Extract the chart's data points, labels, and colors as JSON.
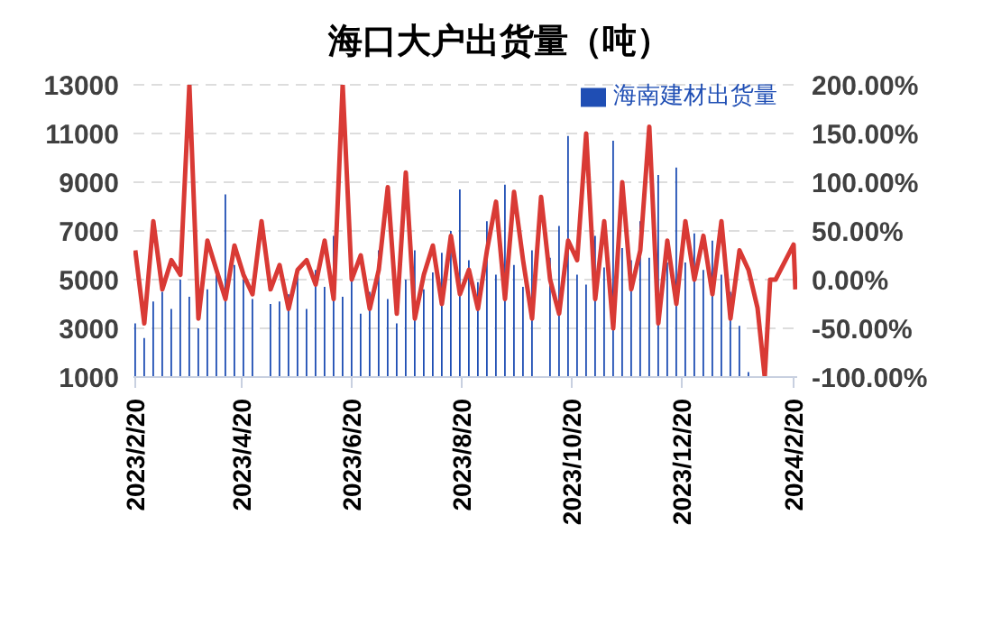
{
  "chart_data": {
    "type": "bar",
    "title": "海口大户出货量（吨）",
    "xlim": [
      "2023-02-19",
      "2024-02-22"
    ],
    "xticks": [
      {
        "value": "2023-02-20",
        "label": "2023/2/20"
      },
      {
        "value": "2023-04-20",
        "label": "2023/4/20"
      },
      {
        "value": "2023-06-20",
        "label": "2023/6/20"
      },
      {
        "value": "2023-08-20",
        "label": "2023/8/20"
      },
      {
        "value": "2023-10-20",
        "label": "2023/10/20"
      },
      {
        "value": "2023-12-20",
        "label": "2023/12/20"
      },
      {
        "value": "2024-02-20",
        "label": "2024/2/20"
      }
    ],
    "ylim": [
      1000,
      13000
    ],
    "yticks": [
      1000,
      3000,
      5000,
      7000,
      9000,
      11000,
      13000
    ],
    "y2lim": [
      -100,
      200
    ],
    "y2ticks": [
      {
        "value": -100,
        "label": "-100.00%"
      },
      {
        "value": -50,
        "label": "-50.00%"
      },
      {
        "value": 0,
        "label": "0.00%"
      },
      {
        "value": 50,
        "label": "50.00%"
      },
      {
        "value": 100,
        "label": "100.00%"
      },
      {
        "value": 150,
        "label": "150.00%"
      },
      {
        "value": 200,
        "label": "200.00%"
      }
    ],
    "grid": "y",
    "legend": "top right",
    "series": [
      {
        "name": "海南建材出货量",
        "color": "#1f4eb4",
        "x": [
          "2023-02-20",
          "2023-02-25",
          "2023-03-02",
          "2023-03-07",
          "2023-03-12",
          "2023-03-17",
          "2023-03-22",
          "2023-03-27",
          "2023-04-01",
          "2023-04-06",
          "2023-04-11",
          "2023-04-16",
          "2023-04-21",
          "2023-04-26",
          "2023-05-01",
          "2023-05-06",
          "2023-05-11",
          "2023-05-16",
          "2023-05-21",
          "2023-05-26",
          "2023-05-31",
          "2023-06-05",
          "2023-06-10",
          "2023-06-15",
          "2023-06-20",
          "2023-06-25",
          "2023-06-30",
          "2023-07-05",
          "2023-07-10",
          "2023-07-15",
          "2023-07-20",
          "2023-07-25",
          "2023-07-30",
          "2023-08-04",
          "2023-08-09",
          "2023-08-14",
          "2023-08-19",
          "2023-08-24",
          "2023-08-29",
          "2023-09-03",
          "2023-09-08",
          "2023-09-13",
          "2023-09-18",
          "2023-09-23",
          "2023-09-28",
          "2023-10-03",
          "2023-10-08",
          "2023-10-13",
          "2023-10-18",
          "2023-10-23",
          "2023-10-28",
          "2023-11-02",
          "2023-11-07",
          "2023-11-12",
          "2023-11-17",
          "2023-11-22",
          "2023-11-27",
          "2023-12-02",
          "2023-12-07",
          "2023-12-12",
          "2023-12-17",
          "2023-12-22",
          "2023-12-27",
          "2024-01-01",
          "2024-01-06",
          "2024-01-11",
          "2024-01-16",
          "2024-01-21",
          "2024-01-26"
        ],
        "values": [
          3200,
          2600,
          4100,
          4500,
          3800,
          5000,
          4300,
          3000,
          4600,
          5200,
          8500,
          5600,
          5000,
          4200,
          null,
          4000,
          4100,
          4400,
          5200,
          3800,
          5400,
          4700,
          6800,
          4300,
          5100,
          3600,
          4500,
          6200,
          4200,
          3200,
          5000,
          6200,
          4600,
          5300,
          6100,
          7000,
          8700,
          5800,
          4900,
          7400,
          5200,
          8900,
          5600,
          4700,
          6200,
          null,
          5900,
          7200,
          10900,
          5200,
          4800,
          6800,
          5500,
          10700,
          6300,
          5800,
          7400,
          5900,
          9300,
          5700,
          9600,
          5700,
          6900,
          5400,
          6600,
          5200,
          4500,
          3100,
          1200
        ]
      },
      {
        "type": "line",
        "axis": "y2",
        "color": "#d93a35",
        "x": [
          "2023-02-20",
          "2023-02-25",
          "2023-03-02",
          "2023-03-07",
          "2023-03-12",
          "2023-03-17",
          "2023-03-22",
          "2023-03-27",
          "2023-04-01",
          "2023-04-06",
          "2023-04-11",
          "2023-04-16",
          "2023-04-21",
          "2023-04-26",
          "2023-05-01",
          "2023-05-06",
          "2023-05-11",
          "2023-05-16",
          "2023-05-21",
          "2023-05-26",
          "2023-05-31",
          "2023-06-05",
          "2023-06-10",
          "2023-06-15",
          "2023-06-20",
          "2023-06-25",
          "2023-06-30",
          "2023-07-05",
          "2023-07-10",
          "2023-07-15",
          "2023-07-20",
          "2023-07-25",
          "2023-07-30",
          "2023-08-04",
          "2023-08-09",
          "2023-08-14",
          "2023-08-19",
          "2023-08-24",
          "2023-08-29",
          "2023-09-03",
          "2023-09-08",
          "2023-09-13",
          "2023-09-18",
          "2023-09-23",
          "2023-09-28",
          "2023-10-03",
          "2023-10-08",
          "2023-10-13",
          "2023-10-18",
          "2023-10-23",
          "2023-10-28",
          "2023-11-02",
          "2023-11-07",
          "2023-11-12",
          "2023-11-17",
          "2023-11-22",
          "2023-11-27",
          "2023-12-02",
          "2023-12-07",
          "2023-12-12",
          "2023-12-17",
          "2023-12-22",
          "2023-12-27",
          "2024-01-01",
          "2024-01-06",
          "2024-01-11",
          "2024-01-16",
          "2024-01-21",
          "2024-01-26",
          "2024-01-31",
          "2024-02-04",
          "2024-02-07",
          "2024-02-10",
          "2024-02-20",
          "2024-02-21"
        ],
        "values": [
          30,
          -45,
          60,
          -10,
          20,
          5,
          200,
          -40,
          40,
          10,
          -20,
          35,
          5,
          -15,
          60,
          -10,
          15,
          -30,
          10,
          20,
          -5,
          40,
          -20,
          200,
          0,
          25,
          -30,
          10,
          95,
          -35,
          110,
          -40,
          5,
          35,
          -25,
          45,
          -15,
          10,
          -30,
          30,
          80,
          -20,
          90,
          20,
          -40,
          85,
          0,
          -35,
          40,
          20,
          150,
          -20,
          60,
          -50,
          100,
          -10,
          30,
          157,
          -45,
          40,
          -25,
          60,
          0,
          45,
          -15,
          60,
          -40,
          30,
          10,
          -29,
          -100,
          0,
          0,
          36,
          -10
        ]
      }
    ]
  }
}
